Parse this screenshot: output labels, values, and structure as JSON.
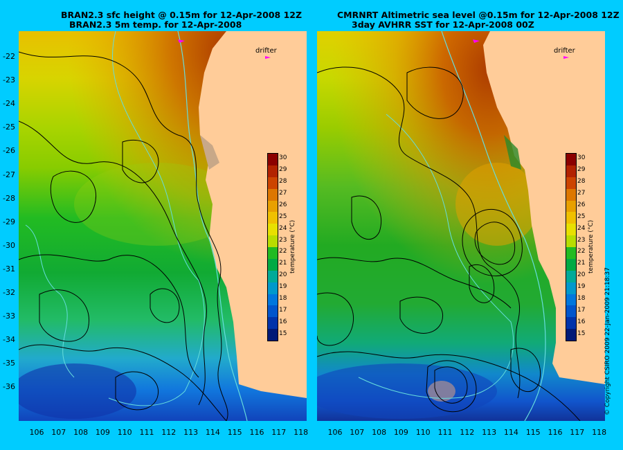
{
  "panels": [
    {
      "title_line1": "BRAN2.3 sfc height @ 0.15m for 12-Apr-2008 12Z",
      "title_line2": "BRAN2.3 5m temp. for 12-Apr-2008",
      "drifter_label": "drifter"
    },
    {
      "title_line1": "CMRNRT Altimetric sea level  @0.15m  for 12-Apr-2008 12Z",
      "title_line2": "3day AVHRR SST for 12-Apr-2008 00Z",
      "drifter_label": "drifter"
    }
  ],
  "lat_ticks": [
    "-22",
    "-23",
    "-24",
    "-25",
    "-26",
    "-27",
    "-28",
    "-29",
    "-30",
    "-31",
    "-32",
    "-33",
    "-34",
    "-35",
    "-36"
  ],
  "lon_ticks": [
    "106",
    "107",
    "108",
    "109",
    "110",
    "111",
    "112",
    "113",
    "114",
    "115",
    "116",
    "117",
    "118"
  ],
  "colorbar": {
    "title": "temperature (°C)",
    "labels": [
      "30",
      "29",
      "28",
      "27",
      "26",
      "25",
      "24",
      "23",
      "22",
      "21",
      "20",
      "19",
      "18",
      "17",
      "16",
      "15"
    ],
    "colors": [
      "#8b0000",
      "#b22200",
      "#cc4400",
      "#dd7700",
      "#e8a000",
      "#f0c000",
      "#e8e000",
      "#b8dd00",
      "#22bb22",
      "#00aa44",
      "#00aa99",
      "#0099cc",
      "#0077dd",
      "#0055cc",
      "#0033aa",
      "#001a77"
    ]
  },
  "copyright": "© Copyright CSIRO 2009   22-Jan-2009 21:18:37",
  "colors": {
    "background": "#00ccff",
    "land": "#ffcc99",
    "drifter": "#ff00ff",
    "contour": "#000000",
    "isobath": "#66dddd"
  }
}
